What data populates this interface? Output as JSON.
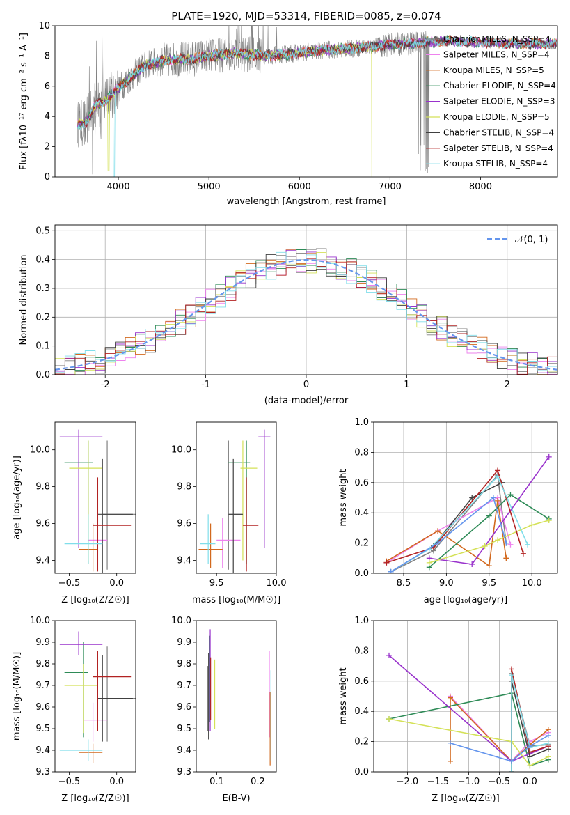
{
  "colors": {
    "chabrier_miles": "#808080",
    "salpeter_miles": "#ee82ee",
    "kroupa_miles": "#d2691e",
    "chabrier_elodie": "#2e8b57",
    "salpeter_elodie": "#9932cc",
    "kroupa_elodie": "#d4e157",
    "chabrier_stelib": "#404040",
    "salpeter_stelib": "#b22222",
    "kroupa_stelib": "#80deea",
    "normal": "#6495ed",
    "grid": "#b0b0b0",
    "axis": "#000000"
  },
  "chart_data": [
    {
      "id": "spectrum",
      "type": "line",
      "title": "PLATE=1920, MJD=53314, FIBERID=0085, z=0.074",
      "xlabel": "wavelength [Angstrom, rest frame]",
      "ylabel": "Flux [fλ10⁻¹⁷ erg cm⁻² s⁻¹ A⁻¹]",
      "xlim": [
        3300,
        8850
      ],
      "ylim": [
        0,
        10
      ],
      "xticks": [
        4000,
        5000,
        6000,
        7000,
        8000
      ],
      "yticks": [
        0,
        2,
        4,
        6,
        8,
        10
      ],
      "grid": false,
      "legend_position": "right",
      "legend": [
        "Chabrier MILES, N_SSP=4",
        "Salpeter MILES, N_SSP=4",
        "Kroupa MILES, N_SSP=5",
        "Chabrier ELODIE, N_SSP=4",
        "Salpeter ELODIE, N_SSP=3",
        "Kroupa ELODIE, N_SSP=5",
        "Chabrier STELIB, N_SSP=4",
        "Salpeter STELIB, N_SSP=4",
        "Kroupa STELIB, N_SSP=4"
      ],
      "continuum": {
        "x": [
          3550,
          3650,
          3750,
          3850,
          3950,
          4100,
          4300,
          4500,
          4800,
          5000,
          5300,
          5600,
          6000,
          6300,
          6600,
          6900,
          7200,
          7600,
          8000,
          8400,
          8850
        ],
        "y": [
          3.5,
          3.6,
          4.8,
          5.0,
          5.6,
          6.4,
          7.4,
          7.7,
          7.8,
          8.0,
          8.2,
          8.0,
          8.2,
          8.4,
          8.5,
          8.7,
          8.8,
          9.0,
          8.9,
          8.8,
          8.8
        ]
      }
    },
    {
      "id": "residuals",
      "type": "line",
      "xlabel": "(data-model)/error",
      "ylabel": "Normed distribution",
      "xlim": [
        -2.5,
        2.5
      ],
      "ylim": [
        0,
        0.52
      ],
      "xticks": [
        -2,
        -1,
        0,
        1,
        2
      ],
      "yticks": [
        0.0,
        0.1,
        0.2,
        0.3,
        0.4,
        0.5
      ],
      "grid": true,
      "legend_position": "top-right",
      "legend": [
        "𝒩(0, 1)"
      ],
      "bin_width": 0.1
    },
    {
      "id": "age-vs-Z",
      "type": "scatter",
      "xlabel": "Z [log₁₀(Z/Z☉)]",
      "ylabel": "age  [log₁₀(age/yr)]",
      "xlim": [
        -0.65,
        0.2
      ],
      "ylim": [
        9.33,
        10.15
      ],
      "xticks": [
        -0.5,
        0.0
      ],
      "yticks": [
        9.4,
        9.6,
        9.8,
        10.0
      ],
      "grid": false,
      "points": [
        {
          "x": -0.1,
          "y": 9.65,
          "xerr": [
            0.05,
            0.3
          ],
          "yerr": [
            0.3,
            0.4
          ]
        },
        {
          "x": -0.2,
          "y": 9.51,
          "xerr": [
            0.1,
            0.1
          ],
          "yerr": [
            0.15,
            0.12
          ]
        },
        {
          "x": -0.25,
          "y": 9.46,
          "xerr": [
            0.15,
            0.05
          ],
          "yerr": [
            0.12,
            0.14
          ]
        },
        {
          "x": -0.3,
          "y": 9.93,
          "xerr": [
            0.25,
            0.05
          ],
          "yerr": [
            0.55,
            0.12
          ]
        },
        {
          "x": -0.4,
          "y": 10.07,
          "xerr": [
            0.2,
            0.25
          ],
          "yerr": [
            0.6,
            0.04
          ]
        },
        {
          "x": -0.3,
          "y": 9.9,
          "xerr": [
            0.2,
            0.15
          ],
          "yerr": [
            0.5,
            0.15
          ]
        },
        {
          "x": -0.15,
          "y": 9.65,
          "xerr": [
            0.05,
            0.32
          ],
          "yerr": [
            0.35,
            0.3
          ]
        },
        {
          "x": -0.2,
          "y": 9.59,
          "xerr": [
            0.05,
            0.35
          ],
          "yerr": [
            0.25,
            0.26
          ]
        },
        {
          "x": -0.3,
          "y": 9.49,
          "xerr": [
            0.25,
            0.15
          ],
          "yerr": [
            0.11,
            0.16
          ]
        }
      ]
    },
    {
      "id": "age-vs-mass",
      "type": "scatter",
      "xlabel": "mass [log₁₀(M/M☉)]",
      "ylabel": "",
      "xlim": [
        9.33,
        10.0
      ],
      "ylim": [
        9.33,
        10.15
      ],
      "xticks": [
        9.5,
        10.0
      ],
      "yticks": [
        9.4,
        9.6,
        9.8,
        10.0
      ],
      "grid": false,
      "points": [
        {
          "x": 9.6,
          "y": 9.65,
          "xerr": [
            0.0,
            0.12
          ],
          "yerr": [
            0.3,
            0.4
          ]
        },
        {
          "x": 9.55,
          "y": 9.51,
          "xerr": [
            0.05,
            0.15
          ],
          "yerr": [
            0.15,
            0.12
          ]
        },
        {
          "x": 9.45,
          "y": 9.46,
          "xerr": [
            0.1,
            0.1
          ],
          "yerr": [
            0.1,
            0.14
          ]
        },
        {
          "x": 9.75,
          "y": 9.93,
          "xerr": [
            0.15,
            0.03
          ],
          "yerr": [
            0.55,
            0.12
          ]
        },
        {
          "x": 9.9,
          "y": 10.07,
          "xerr": [
            0.05,
            0.05
          ],
          "yerr": [
            0.6,
            0.04
          ]
        },
        {
          "x": 9.72,
          "y": 9.9,
          "xerr": [
            0.02,
            0.12
          ],
          "yerr": [
            0.5,
            0.15
          ]
        },
        {
          "x": 9.64,
          "y": 9.65,
          "xerr": [
            0.04,
            0.08
          ],
          "yerr": [
            0.35,
            0.3
          ]
        },
        {
          "x": 9.75,
          "y": 9.59,
          "xerr": [
            0.03,
            0.1
          ],
          "yerr": [
            0.25,
            0.26
          ]
        },
        {
          "x": 9.43,
          "y": 9.49,
          "xerr": [
            0.07,
            0.06
          ],
          "yerr": [
            0.11,
            0.16
          ]
        }
      ]
    },
    {
      "id": "weight-vs-age",
      "type": "line",
      "xlabel": "age  [log₁₀(age/yr)]",
      "ylabel": "mass weight",
      "xlim": [
        8.15,
        10.3
      ],
      "ylim": [
        0,
        1.0
      ],
      "xticks": [
        8.5,
        9.0,
        9.5,
        10.0
      ],
      "yticks": [
        0.0,
        0.2,
        0.4,
        0.6,
        0.8,
        1.0
      ],
      "grid": true,
      "series": [
        {
          "color_key": "chabrier_miles",
          "x": [
            8.35,
            8.85,
            9.6,
            9.7
          ],
          "y": [
            0.01,
            0.15,
            0.65,
            0.2
          ]
        },
        {
          "color_key": "salpeter_miles",
          "x": [
            8.3,
            8.9,
            9.6,
            9.75
          ],
          "y": [
            0.07,
            0.28,
            0.5,
            0.19
          ]
        },
        {
          "color_key": "kroupa_miles",
          "x": [
            8.3,
            8.9,
            9.5,
            9.6,
            9.7
          ],
          "y": [
            0.08,
            0.28,
            0.05,
            0.48,
            0.1
          ]
        },
        {
          "color_key": "chabrier_elodie",
          "x": [
            8.8,
            9.5,
            9.75,
            10.2
          ],
          "y": [
            0.04,
            0.38,
            0.52,
            0.36
          ]
        },
        {
          "color_key": "salpeter_elodie",
          "x": [
            8.8,
            9.3,
            10.2
          ],
          "y": [
            0.1,
            0.06,
            0.77
          ]
        },
        {
          "color_key": "kroupa_elodie",
          "x": [
            8.8,
            9.45,
            9.6,
            10.0,
            10.2
          ],
          "y": [
            0.07,
            0.18,
            0.22,
            0.32,
            0.35
          ]
        },
        {
          "color_key": "chabrier_stelib",
          "x": [
            8.35,
            8.85,
            9.3,
            9.65
          ],
          "y": [
            0.01,
            0.18,
            0.5,
            0.6
          ]
        },
        {
          "color_key": "salpeter_stelib",
          "x": [
            8.3,
            8.85,
            9.6,
            9.9
          ],
          "y": [
            0.07,
            0.17,
            0.68,
            0.13
          ]
        },
        {
          "color_key": "kroupa_stelib",
          "x": [
            8.35,
            8.8,
            9.6,
            9.95
          ],
          "y": [
            0.01,
            0.16,
            0.64,
            0.19
          ]
        },
        {
          "color_key": "normal",
          "x": [
            8.35,
            8.9,
            9.55,
            9.7
          ],
          "y": [
            0.01,
            0.2,
            0.5,
            0.2
          ]
        }
      ]
    },
    {
      "id": "mass-vs-Z",
      "type": "scatter",
      "xlabel": "Z [log₁₀(Z/Z☉)]",
      "ylabel": "mass [log₁₀(M/M☉)]",
      "xlim": [
        -0.65,
        0.2
      ],
      "ylim": [
        9.3,
        10.0
      ],
      "xticks": [
        -0.5,
        0.0
      ],
      "yticks": [
        9.3,
        9.4,
        9.5,
        9.6,
        9.7,
        9.8,
        9.9,
        10.0
      ],
      "grid": false,
      "points": [
        {
          "x": -0.1,
          "y": 9.64,
          "xerr": [
            0.05,
            0.3
          ],
          "yerr": [
            0.2,
            0.24
          ]
        },
        {
          "x": -0.25,
          "y": 9.54,
          "xerr": [
            0.1,
            0.15
          ],
          "yerr": [
            0.1,
            0.08
          ]
        },
        {
          "x": -0.25,
          "y": 9.39,
          "xerr": [
            0.15,
            0.1
          ],
          "yerr": [
            0.05,
            0.04
          ]
        },
        {
          "x": -0.35,
          "y": 9.76,
          "xerr": [
            0.2,
            0.05
          ],
          "yerr": [
            0.3,
            0.14
          ]
        },
        {
          "x": -0.4,
          "y": 9.89,
          "xerr": [
            0.2,
            0.25
          ],
          "yerr": [
            0.05,
            0.06
          ]
        },
        {
          "x": -0.35,
          "y": 9.7,
          "xerr": [
            0.2,
            0.15
          ],
          "yerr": [
            0.22,
            0.1
          ]
        },
        {
          "x": -0.15,
          "y": 9.64,
          "xerr": [
            0.05,
            0.32
          ],
          "yerr": [
            0.2,
            0.2
          ]
        },
        {
          "x": -0.2,
          "y": 9.74,
          "xerr": [
            0.05,
            0.35
          ],
          "yerr": [
            0.25,
            0.12
          ]
        },
        {
          "x": -0.3,
          "y": 9.4,
          "xerr": [
            0.3,
            0.15
          ],
          "yerr": [
            0.05,
            0.05
          ]
        }
      ]
    },
    {
      "id": "mass-vs-ebv",
      "type": "scatter",
      "xlabel": "E(B-V)",
      "ylabel": "",
      "xlim": [
        0.05,
        0.245
      ],
      "ylim": [
        9.3,
        10.0
      ],
      "xticks": [
        0.1,
        0.2
      ],
      "yticks": [
        9.3,
        9.4,
        9.5,
        9.6,
        9.7,
        9.8,
        9.9,
        10.0
      ],
      "grid": false,
      "points": [
        {
          "x": 0.078,
          "y": 9.64,
          "xerr": [
            0,
            0
          ],
          "yerr": [
            0.15,
            0.15
          ]
        },
        {
          "x": 0.228,
          "y": 9.66,
          "xerr": [
            0,
            0
          ],
          "yerr": [
            0.2,
            0.2
          ]
        },
        {
          "x": 0.23,
          "y": 9.5,
          "xerr": [
            0,
            0
          ],
          "yerr": [
            0.17,
            0.17
          ]
        },
        {
          "x": 0.082,
          "y": 9.78,
          "xerr": [
            0,
            0
          ],
          "yerr": [
            0.25,
            0.15
          ]
        },
        {
          "x": 0.084,
          "y": 9.79,
          "xerr": [
            0,
            0
          ],
          "yerr": [
            0.3,
            0.17
          ]
        },
        {
          "x": 0.095,
          "y": 9.66,
          "xerr": [
            0,
            0
          ],
          "yerr": [
            0.16,
            0.16
          ]
        },
        {
          "x": 0.08,
          "y": 9.65,
          "xerr": [
            0,
            0
          ],
          "yerr": [
            0.2,
            0.2
          ]
        },
        {
          "x": 0.085,
          "y": 9.7,
          "xerr": [
            0,
            0
          ],
          "yerr": [
            0.16,
            0.13
          ]
        },
        {
          "x": 0.232,
          "y": 9.55,
          "xerr": [
            0,
            0
          ],
          "yerr": [
            0.2,
            0.22
          ]
        }
      ]
    },
    {
      "id": "weight-vs-Z",
      "type": "line",
      "xlabel": "Z [log₁₀(Z/Z☉)]",
      "ylabel": "mass weight",
      "xlim": [
        -2.55,
        0.45
      ],
      "ylim": [
        0,
        1.0
      ],
      "xticks": [
        -2.0,
        -1.5,
        -1.0,
        -0.5,
        0.0
      ],
      "yticks": [
        0.0,
        0.2,
        0.4,
        0.6,
        0.8,
        1.0
      ],
      "grid": true,
      "series": [
        {
          "color_key": "chabrier_miles",
          "x": [
            -0.3,
            -0.3,
            0.0,
            0.3
          ],
          "y": [
            0.0,
            0.65,
            0.17,
            0.18
          ]
        },
        {
          "color_key": "salpeter_miles",
          "x": [
            -1.3,
            -0.3,
            0.0,
            0.3
          ],
          "y": [
            0.5,
            0.07,
            0.2,
            0.26
          ]
        },
        {
          "color_key": "kroupa_miles",
          "x": [
            -1.3,
            -1.3,
            -0.3,
            0.0,
            0.3
          ],
          "y": [
            0.07,
            0.49,
            0.07,
            0.18,
            0.28
          ]
        },
        {
          "color_key": "chabrier_elodie",
          "x": [
            -2.3,
            -0.3,
            0.0,
            0.3
          ],
          "y": [
            0.35,
            0.52,
            0.04,
            0.08
          ]
        },
        {
          "color_key": "salpeter_elodie",
          "x": [
            -2.3,
            -0.3,
            0.0,
            0.3
          ],
          "y": [
            0.77,
            0.07,
            0.12,
            0.17
          ]
        },
        {
          "color_key": "kroupa_elodie",
          "x": [
            -2.3,
            -0.3,
            0.0,
            0.3
          ],
          "y": [
            0.35,
            0.2,
            0.04,
            0.1
          ]
        },
        {
          "color_key": "chabrier_stelib",
          "x": [
            -0.3,
            -0.3,
            0.0,
            0.3
          ],
          "y": [
            0.0,
            0.6,
            0.1,
            0.15
          ]
        },
        {
          "color_key": "salpeter_stelib",
          "x": [
            -0.3,
            -0.3,
            0.0,
            0.3
          ],
          "y": [
            0.07,
            0.68,
            0.13,
            0.17
          ]
        },
        {
          "color_key": "kroupa_stelib",
          "x": [
            -0.3,
            -0.3,
            0.0,
            0.3
          ],
          "y": [
            0.0,
            0.64,
            0.16,
            0.19
          ]
        },
        {
          "color_key": "normal",
          "x": [
            -1.3,
            -0.3,
            0.0,
            0.3
          ],
          "y": [
            0.19,
            0.07,
            0.17,
            0.24
          ]
        }
      ]
    }
  ]
}
